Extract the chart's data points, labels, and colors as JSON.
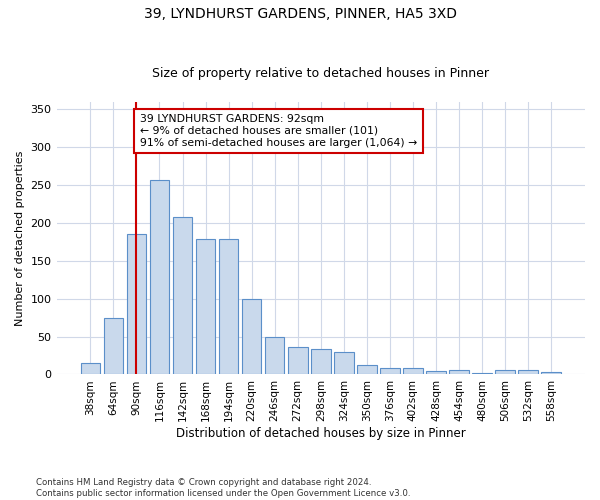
{
  "title1": "39, LYNDHURST GARDENS, PINNER, HA5 3XD",
  "title2": "Size of property relative to detached houses in Pinner",
  "xlabel": "Distribution of detached houses by size in Pinner",
  "ylabel": "Number of detached properties",
  "categories": [
    "38sqm",
    "64sqm",
    "90sqm",
    "116sqm",
    "142sqm",
    "168sqm",
    "194sqm",
    "220sqm",
    "246sqm",
    "272sqm",
    "298sqm",
    "324sqm",
    "350sqm",
    "376sqm",
    "402sqm",
    "428sqm",
    "454sqm",
    "480sqm",
    "506sqm",
    "532sqm",
    "558sqm"
  ],
  "values": [
    15,
    75,
    185,
    257,
    208,
    178,
    178,
    100,
    50,
    36,
    33,
    30,
    12,
    9,
    9,
    5,
    6,
    2,
    6,
    6,
    3
  ],
  "bar_color": "#c9d9ec",
  "bar_edge_color": "#5b8fc9",
  "ref_line_color": "#cc0000",
  "annotation_text": "39 LYNDHURST GARDENS: 92sqm\n← 9% of detached houses are smaller (101)\n91% of semi-detached houses are larger (1,064) →",
  "annotation_box_color": "#ffffff",
  "annotation_box_edge": "#cc0000",
  "ylim": [
    0,
    360
  ],
  "yticks": [
    0,
    50,
    100,
    150,
    200,
    250,
    300,
    350
  ],
  "footer": "Contains HM Land Registry data © Crown copyright and database right 2024.\nContains public sector information licensed under the Open Government Licence v3.0.",
  "bg_color": "#ffffff",
  "grid_color": "#d0d8e8"
}
